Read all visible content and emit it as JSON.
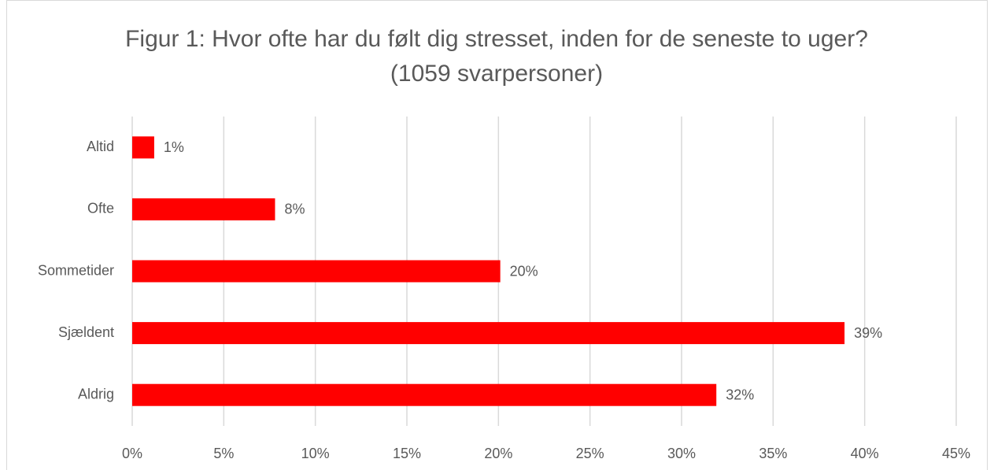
{
  "chart_data": {
    "type": "hbar",
    "title": "Figur 1: Hvor ofte har du følt dig stresset, inden for de seneste to uger? (1059 svarpersoner)",
    "categories": [
      "Altid",
      "Ofte",
      "Sommetider",
      "Sjældent",
      "Aldrig"
    ],
    "values": [
      1.2,
      7.8,
      20.1,
      38.9,
      31.9
    ],
    "value_labels": [
      "1%",
      "8%",
      "20%",
      "39%",
      "32%"
    ],
    "color": "#ff0000",
    "xlim": [
      0,
      45
    ],
    "xticks": [
      {
        "value": 0,
        "label": "0%"
      },
      {
        "value": 5,
        "label": "5%"
      },
      {
        "value": 10,
        "label": "10%"
      },
      {
        "value": 15,
        "label": "15%"
      },
      {
        "value": 20,
        "label": "20%"
      },
      {
        "value": 25,
        "label": "25%"
      },
      {
        "value": 30,
        "label": "30%"
      },
      {
        "value": 35,
        "label": "35%"
      },
      {
        "value": 40,
        "label": "40%"
      },
      {
        "value": 45,
        "label": "45%"
      }
    ],
    "grid": true
  }
}
